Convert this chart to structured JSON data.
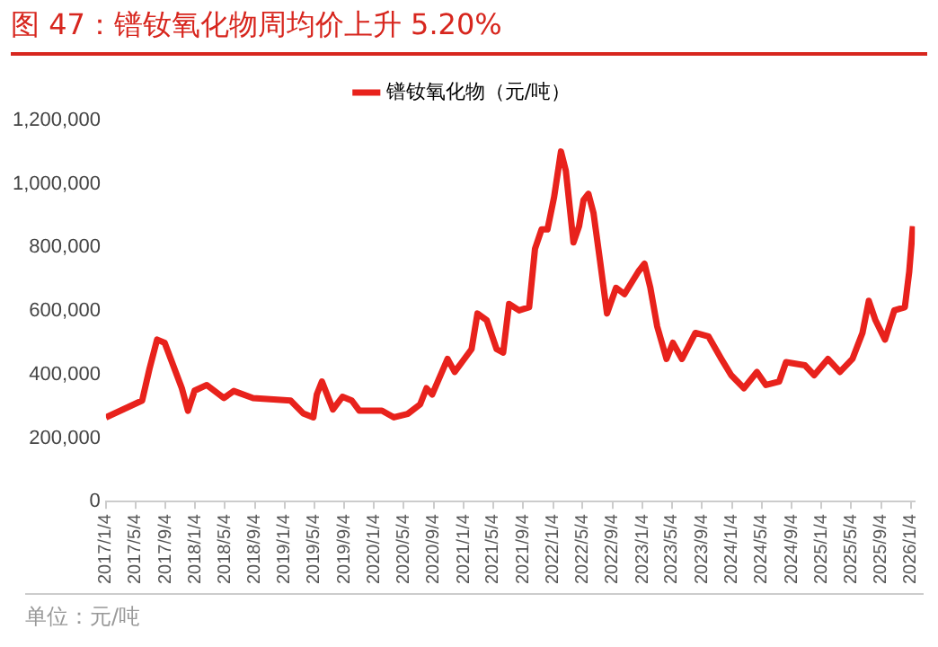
{
  "chart_data": {
    "type": "line",
    "title": "图 47：镨钕氧化物周均价上升 5.20%",
    "annotations": [
      "单位：元/吨"
    ],
    "xlim": [
      "2017-01-04",
      "2026-01-20"
    ],
    "xticks": [
      {
        "value": "2017-01-04",
        "label": "2017/1/4"
      },
      {
        "value": "2017-05-04",
        "label": "2017/5/4"
      },
      {
        "value": "2017-09-04",
        "label": "2017/9/4"
      },
      {
        "value": "2018-01-04",
        "label": "2018/1/4"
      },
      {
        "value": "2018-05-04",
        "label": "2018/5/4"
      },
      {
        "value": "2018-09-04",
        "label": "2018/9/4"
      },
      {
        "value": "2019-01-04",
        "label": "2019/1/4"
      },
      {
        "value": "2019-05-04",
        "label": "2019/5/4"
      },
      {
        "value": "2019-09-04",
        "label": "2019/9/4"
      },
      {
        "value": "2020-01-04",
        "label": "2020/1/4"
      },
      {
        "value": "2020-05-04",
        "label": "2020/5/4"
      },
      {
        "value": "2020-09-04",
        "label": "2020/9/4"
      },
      {
        "value": "2021-01-04",
        "label": "2021/1/4"
      },
      {
        "value": "2021-05-04",
        "label": "2021/5/4"
      },
      {
        "value": "2021-09-04",
        "label": "2021/9/4"
      },
      {
        "value": "2022-01-04",
        "label": "2022/1/4"
      },
      {
        "value": "2022-05-04",
        "label": "2022/5/4"
      },
      {
        "value": "2022-09-04",
        "label": "2022/9/4"
      },
      {
        "value": "2023-01-04",
        "label": "2023/1/4"
      },
      {
        "value": "2023-05-04",
        "label": "2023/5/4"
      },
      {
        "value": "2023-09-04",
        "label": "2023/9/4"
      },
      {
        "value": "2024-01-04",
        "label": "2024/1/4"
      },
      {
        "value": "2024-05-04",
        "label": "2024/5/4"
      },
      {
        "value": "2024-09-04",
        "label": "2024/9/4"
      },
      {
        "value": "2025-01-04",
        "label": "2025/1/4"
      },
      {
        "value": "2025-05-04",
        "label": "2025/5/4"
      },
      {
        "value": "2025-09-04",
        "label": "2025/9/4"
      },
      {
        "value": "2026-01-04",
        "label": "2026/1/4"
      }
    ],
    "ylim": [
      0,
      1200000
    ],
    "yticks": [
      {
        "value": 0,
        "label": "0"
      },
      {
        "value": 200000,
        "label": "200,000"
      },
      {
        "value": 400000,
        "label": "400,000"
      },
      {
        "value": 600000,
        "label": "600,000"
      },
      {
        "value": 800000,
        "label": "800,000"
      },
      {
        "value": 1000000,
        "label": "1,000,000"
      },
      {
        "value": 1200000,
        "label": "1,200,000"
      }
    ],
    "grid": false,
    "legend": "top",
    "marker": "none",
    "line_style": "solid",
    "x": [
      "2017-01-04",
      "2017-06-01",
      "2017-07-01",
      "2017-08-01",
      "2017-09-01",
      "2017-10-15",
      "2017-11-10",
      "2017-12-05",
      "2018-01-01",
      "2018-02-20",
      "2018-05-01",
      "2018-06-10",
      "2018-08-28",
      "2019-01-28",
      "2019-03-20",
      "2019-05-01",
      "2019-05-15",
      "2019-06-05",
      "2019-07-20",
      "2019-08-28",
      "2019-10-05",
      "2019-11-05",
      "2020-02-05",
      "2020-03-25",
      "2020-05-20",
      "2020-07-10",
      "2020-08-05",
      "2020-08-28",
      "2020-10-30",
      "2020-11-28",
      "2021-02-05",
      "2021-03-01",
      "2021-04-08",
      "2021-05-18",
      "2021-06-14",
      "2021-07-08",
      "2021-08-18",
      "2021-09-28",
      "2021-10-22",
      "2021-11-18",
      "2021-12-12",
      "2022-01-08",
      "2022-02-05",
      "2022-02-25",
      "2022-03-28",
      "2022-04-20",
      "2022-05-08",
      "2022-05-28",
      "2022-06-18",
      "2022-07-15",
      "2022-08-12",
      "2022-09-18",
      "2022-10-22",
      "2022-12-18",
      "2023-01-12",
      "2023-02-05",
      "2023-03-05",
      "2023-04-12",
      "2023-05-08",
      "2023-06-14",
      "2023-08-08",
      "2023-09-30",
      "2023-11-22",
      "2024-01-01",
      "2024-02-22",
      "2024-04-15",
      "2024-05-22",
      "2024-07-15",
      "2024-08-12",
      "2024-10-28",
      "2024-12-05",
      "2025-01-30",
      "2025-03-20",
      "2025-05-10",
      "2025-06-20",
      "2025-07-16",
      "2025-08-12",
      "2025-09-20",
      "2025-10-28",
      "2025-12-10",
      "2025-12-28",
      "2026-01-12"
    ],
    "series": [
      {
        "name": "镨钕氧化物（元/吨）",
        "color": "#e8221c",
        "values": [
          265000,
          318000,
          418000,
          510000,
          500000,
          410000,
          357000,
          286000,
          349000,
          367000,
          326000,
          348000,
          326000,
          318000,
          278000,
          265000,
          337000,
          378000,
          290000,
          330000,
          318000,
          286000,
          286000,
          265000,
          276000,
          306000,
          357000,
          337000,
          449000,
          408000,
          480000,
          592000,
          571000,
          480000,
          469000,
          622000,
          602000,
          612000,
          796000,
          857000,
          857000,
          959000,
          1102000,
          1041000,
          816000,
          867000,
          949000,
          969000,
          908000,
          755000,
          592000,
          673000,
          653000,
          724000,
          749000,
          673000,
          551000,
          449000,
          500000,
          449000,
          531000,
          520000,
          449000,
          398000,
          357000,
          408000,
          367000,
          378000,
          439000,
          429000,
          398000,
          449000,
          408000,
          449000,
          531000,
          632000,
          571000,
          510000,
          602000,
          612000,
          724000,
          867000
        ]
      }
    ]
  }
}
